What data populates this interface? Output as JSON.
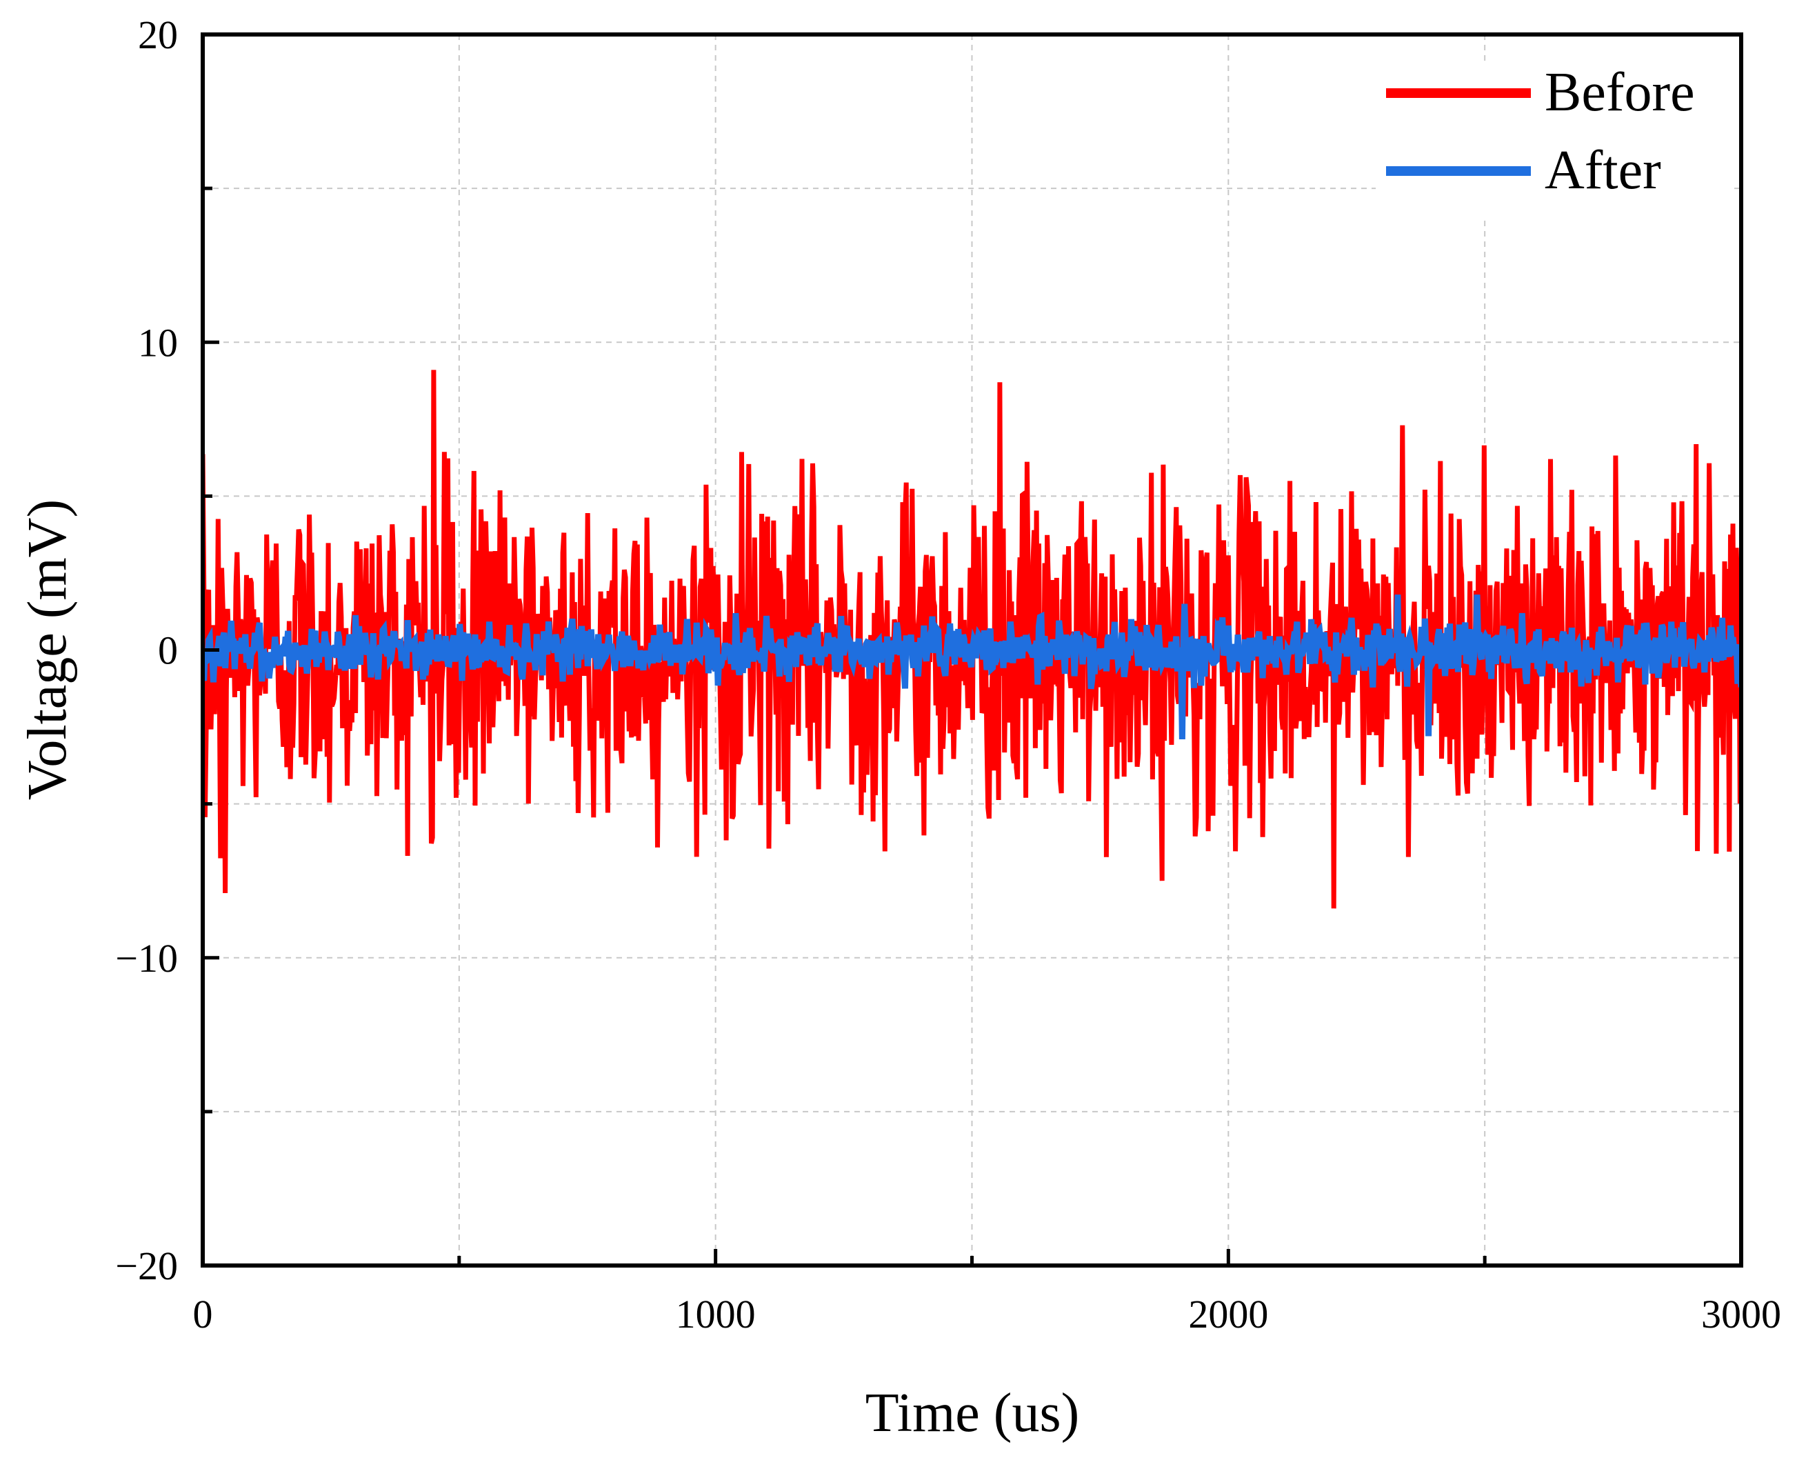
{
  "chart_data": {
    "type": "line",
    "title": "",
    "xlabel": "Time (us)",
    "ylabel": "Voltage (mV)",
    "xlim": [
      0,
      3000
    ],
    "ylim": [
      -20,
      20
    ],
    "x_ticks": [
      0,
      1000,
      2000,
      3000
    ],
    "x_tick_labels": [
      "0",
      "1000",
      "2000",
      "3000"
    ],
    "y_ticks": [
      -20,
      -10,
      0,
      10,
      20
    ],
    "y_tick_labels": [
      "−20",
      "−10",
      "0",
      "10",
      "20"
    ],
    "grid": true,
    "legend_position": "top-right",
    "series": [
      {
        "name": "Before",
        "color": "#ff0000",
        "noise_range": [
          -8.4,
          9.1
        ],
        "peaks": [
          {
            "x": 450,
            "y": 9.1
          },
          {
            "x": 1555,
            "y": 8.7
          },
          {
            "x": 2340,
            "y": 7.3
          },
          {
            "x": 2205,
            "y": -8.4
          },
          {
            "x": 45,
            "y": -7.9
          },
          {
            "x": 1870,
            "y": -7.5
          }
        ]
      },
      {
        "name": "After",
        "color": "#1f6fdf",
        "noise_range": [
          -2.9,
          1.8
        ],
        "peaks": [
          {
            "x": 1910,
            "y": -2.9
          },
          {
            "x": 2390,
            "y": -2.8
          },
          {
            "x": 2330,
            "y": 1.8
          },
          {
            "x": 2485,
            "y": 1.8
          },
          {
            "x": 1915,
            "y": 1.5
          }
        ]
      }
    ]
  },
  "legend": {
    "items": [
      {
        "label": "Before",
        "color": "#ff0000"
      },
      {
        "label": "After",
        "color": "#1f6fdf"
      }
    ]
  }
}
